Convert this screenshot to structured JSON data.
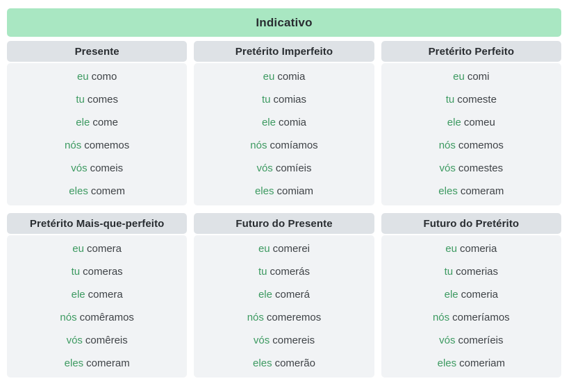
{
  "mood": {
    "title": "Indicativo"
  },
  "colors": {
    "mood_banner_bg": "#a9e7c2",
    "tense_header_bg": "#dee2e6",
    "tense_body_bg": "#f1f3f5",
    "pronoun_text": "#3d9a61",
    "verb_text": "#3f4347",
    "heading_text": "#292d31"
  },
  "tenses": [
    {
      "name": "Presente",
      "forms": [
        {
          "pronoun": "eu",
          "verb": "como"
        },
        {
          "pronoun": "tu",
          "verb": "comes"
        },
        {
          "pronoun": "ele",
          "verb": "come"
        },
        {
          "pronoun": "nós",
          "verb": "comemos"
        },
        {
          "pronoun": "vós",
          "verb": "comeis"
        },
        {
          "pronoun": "eles",
          "verb": "comem"
        }
      ]
    },
    {
      "name": "Pretérito Imperfeito",
      "forms": [
        {
          "pronoun": "eu",
          "verb": "comia"
        },
        {
          "pronoun": "tu",
          "verb": "comias"
        },
        {
          "pronoun": "ele",
          "verb": "comia"
        },
        {
          "pronoun": "nós",
          "verb": "comíamos"
        },
        {
          "pronoun": "vós",
          "verb": "comíeis"
        },
        {
          "pronoun": "eles",
          "verb": "comiam"
        }
      ]
    },
    {
      "name": "Pretérito Perfeito",
      "forms": [
        {
          "pronoun": "eu",
          "verb": "comi"
        },
        {
          "pronoun": "tu",
          "verb": "comeste"
        },
        {
          "pronoun": "ele",
          "verb": "comeu"
        },
        {
          "pronoun": "nós",
          "verb": "comemos"
        },
        {
          "pronoun": "vós",
          "verb": "comestes"
        },
        {
          "pronoun": "eles",
          "verb": "comeram"
        }
      ]
    },
    {
      "name": "Pretérito Mais-que-perfeito",
      "forms": [
        {
          "pronoun": "eu",
          "verb": "comera"
        },
        {
          "pronoun": "tu",
          "verb": "comeras"
        },
        {
          "pronoun": "ele",
          "verb": "comera"
        },
        {
          "pronoun": "nós",
          "verb": "comêramos"
        },
        {
          "pronoun": "vós",
          "verb": "comêreis"
        },
        {
          "pronoun": "eles",
          "verb": "comeram"
        }
      ]
    },
    {
      "name": "Futuro do Presente",
      "forms": [
        {
          "pronoun": "eu",
          "verb": "comerei"
        },
        {
          "pronoun": "tu",
          "verb": "comerás"
        },
        {
          "pronoun": "ele",
          "verb": "comerá"
        },
        {
          "pronoun": "nós",
          "verb": "comeremos"
        },
        {
          "pronoun": "vós",
          "verb": "comereis"
        },
        {
          "pronoun": "eles",
          "verb": "comerão"
        }
      ]
    },
    {
      "name": "Futuro do Pretérito",
      "forms": [
        {
          "pronoun": "eu",
          "verb": "comeria"
        },
        {
          "pronoun": "tu",
          "verb": "comerias"
        },
        {
          "pronoun": "ele",
          "verb": "comeria"
        },
        {
          "pronoun": "nós",
          "verb": "comeríamos"
        },
        {
          "pronoun": "vós",
          "verb": "comeríeis"
        },
        {
          "pronoun": "eles",
          "verb": "comeriam"
        }
      ]
    }
  ]
}
